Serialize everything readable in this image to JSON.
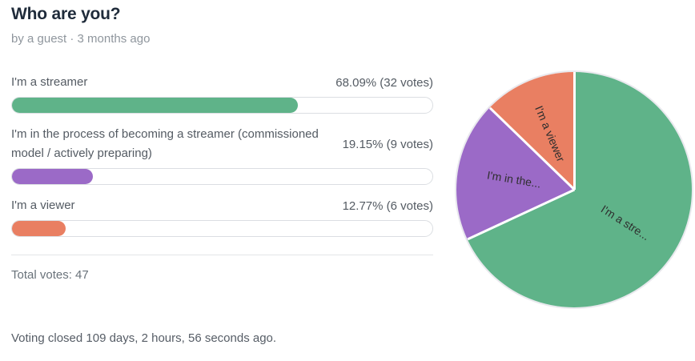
{
  "poll": {
    "title": "Who are you?",
    "byline": "by a guest · 3 months ago",
    "options": [
      {
        "label": "I'm a streamer",
        "percent": 68.09,
        "votes": 32,
        "percent_text": "68.09% (32 votes)",
        "color": "#5fb389"
      },
      {
        "label": "I'm in the process of becoming a streamer (commissioned model / actively preparing)",
        "percent": 19.15,
        "votes": 9,
        "percent_text": "19.15% (9 votes)",
        "color": "#9b6ac7"
      },
      {
        "label": "I'm a viewer",
        "percent": 12.77,
        "votes": 6,
        "percent_text": "12.77% (6 votes)",
        "color": "#e97f62"
      }
    ],
    "total_votes": 47,
    "total_votes_text": "Total votes: 47",
    "closed_text": "Voting closed 109 days, 2 hours, 56 seconds ago."
  },
  "chart_data": {
    "type": "pie",
    "title": "Who are you?",
    "labels": [
      "I'm a streamer",
      "I'm in the process of becoming a streamer (commissioned model / actively preparing)",
      "I'm a viewer"
    ],
    "values": [
      68.09,
      19.15,
      12.77
    ],
    "votes": [
      32,
      9,
      6
    ],
    "total_votes": 47,
    "colors": [
      "#5fb389",
      "#9b6ac7",
      "#e97f62"
    ],
    "slice_labels": [
      "I'm a stre...",
      "I'm in the...",
      "I'm a viewer"
    ],
    "slice_border_color": "#ffffff",
    "start_angle_deg": 0,
    "direction": "clockwise",
    "legend": "none"
  }
}
